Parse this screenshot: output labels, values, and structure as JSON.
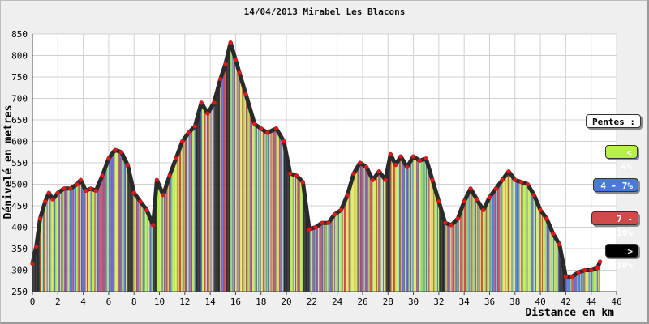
{
  "chart_data": {
    "type": "area",
    "title": "14/04/2013 Mirabel Les Blacons",
    "xlabel": "Distance en km",
    "ylabel": "Dénivelé en metres",
    "xlim": [
      0,
      46
    ],
    "ylim": [
      250,
      850
    ],
    "xticks": [
      0,
      2,
      4,
      6,
      8,
      10,
      12,
      14,
      16,
      18,
      20,
      22,
      24,
      26,
      28,
      30,
      32,
      34,
      36,
      38,
      40,
      42,
      44,
      46
    ],
    "yticks": [
      250,
      300,
      350,
      400,
      450,
      500,
      550,
      600,
      650,
      700,
      750,
      800,
      850
    ],
    "grid": true,
    "legend_title": "Pentes :",
    "legend": [
      {
        "label": "< 4%",
        "color": "#b8f04a",
        "text_color": "#ffffff"
      },
      {
        "label": "4 - 7%",
        "color": "#4a78dc",
        "text_color": "#ffffff"
      },
      {
        "label": "7 - 10%",
        "color": "#d14a4a",
        "text_color": "#ffffff"
      },
      {
        "label": "> 10%",
        "color": "#000000",
        "text_color": "#ffffff"
      }
    ],
    "series": [
      {
        "x": [
          0,
          0.3,
          0.6,
          1.0,
          1.3,
          1.6,
          2.0,
          2.5,
          3.0,
          3.5,
          3.8,
          4.2,
          4.6,
          5.0,
          5.5,
          6.0,
          6.5,
          7.0,
          7.5,
          8.0,
          8.5,
          9.0,
          9.5,
          9.8,
          10.3,
          10.8,
          11.3,
          11.8,
          12.3,
          12.8,
          13.3,
          13.8,
          14.3,
          14.8,
          15.2,
          15.6,
          16.0,
          16.3,
          16.8,
          17.5,
          18.0,
          18.5,
          19.2,
          19.8,
          20.3,
          20.8,
          21.3,
          21.8,
          22.3,
          22.8,
          23.3,
          23.8,
          24.3,
          24.8,
          25.3,
          25.8,
          26.3,
          26.8,
          27.3,
          27.8,
          28.2,
          28.6,
          29.0,
          29.5,
          30.0,
          30.5,
          31.0,
          31.5,
          32.0,
          32.5,
          33.0,
          33.5,
          34.0,
          34.5,
          35.0,
          35.5,
          36.0,
          36.5,
          37.0,
          37.5,
          38.0,
          38.5,
          39.0,
          39.5,
          40.0,
          40.5,
          41.0,
          41.5,
          42.0,
          42.5,
          43.0,
          43.5,
          44.0,
          44.5,
          44.7
        ],
        "y": [
          315,
          355,
          420,
          460,
          480,
          465,
          480,
          490,
          490,
          500,
          510,
          485,
          490,
          485,
          520,
          560,
          580,
          575,
          545,
          480,
          460,
          440,
          405,
          510,
          475,
          520,
          560,
          600,
          620,
          635,
          690,
          665,
          690,
          745,
          780,
          830,
          790,
          760,
          710,
          640,
          630,
          620,
          630,
          600,
          525,
          520,
          505,
          395,
          400,
          410,
          410,
          430,
          440,
          475,
          525,
          550,
          540,
          510,
          530,
          510,
          570,
          545,
          565,
          540,
          565,
          555,
          560,
          510,
          460,
          410,
          405,
          420,
          460,
          490,
          465,
          440,
          470,
          490,
          510,
          530,
          510,
          505,
          500,
          475,
          440,
          420,
          385,
          360,
          285,
          285,
          295,
          300,
          300,
          305,
          320
        ]
      }
    ]
  }
}
